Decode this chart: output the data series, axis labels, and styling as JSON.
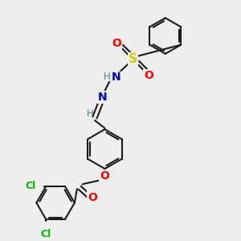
{
  "background_color": "#eeeeee",
  "bond_color": "#1a1a1a",
  "atom_colors": {
    "O": "#ff0000",
    "N": "#0000cc",
    "S": "#cccc00",
    "Cl": "#00bb00",
    "H": "#448888",
    "C": "#1a1a1a"
  },
  "figsize": [
    3.0,
    3.0
  ],
  "dpi": 100
}
